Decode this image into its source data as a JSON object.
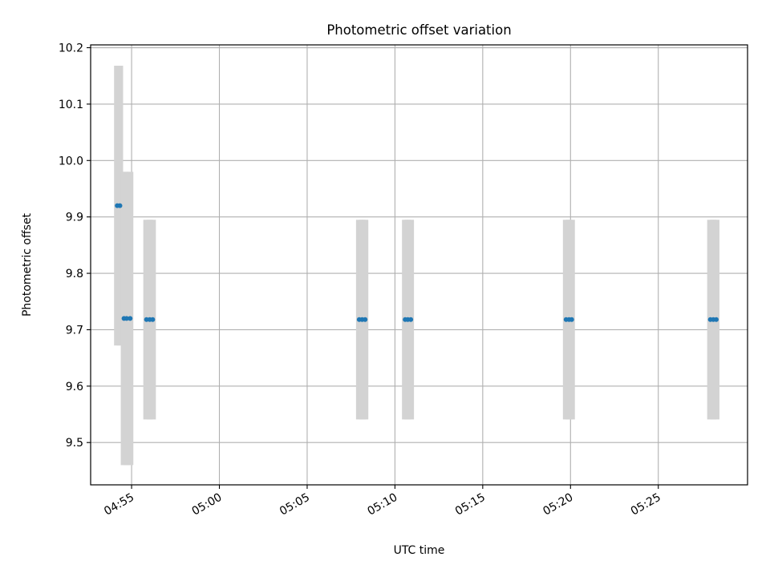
{
  "chart_data": {
    "type": "scatter",
    "title": "Photometric offset variation",
    "xlabel": "UTC time",
    "ylabel": "Photometric offset",
    "xlim": [
      "04:52:40",
      "05:30:05"
    ],
    "ylim": [
      9.425,
      10.205
    ],
    "x_ticks": [
      "04:55",
      "05:00",
      "05:05",
      "05:10",
      "05:15",
      "05:20",
      "05:25"
    ],
    "y_ticks": [
      "9.5",
      "9.6",
      "9.7",
      "9.8",
      "9.9",
      "10.0",
      "10.1",
      "10.2"
    ],
    "grid": true,
    "series": [
      {
        "marker_color": "#1f77b4",
        "errorbar_color": "#d3d3d3",
        "points": [
          {
            "time": "04:54:11",
            "y": 9.92,
            "yerr": 0.248
          },
          {
            "time": "04:54:20",
            "y": 9.92,
            "yerr": 0.248
          },
          {
            "time": "04:54:34",
            "y": 9.72,
            "yerr": 0.26
          },
          {
            "time": "04:54:43",
            "y": 9.72,
            "yerr": 0.26
          },
          {
            "time": "04:54:55",
            "y": 9.72,
            "yerr": 0.26
          },
          {
            "time": "04:55:51",
            "y": 9.718,
            "yerr": 0.177
          },
          {
            "time": "04:56:02",
            "y": 9.718,
            "yerr": 0.177
          },
          {
            "time": "04:56:12",
            "y": 9.718,
            "yerr": 0.177
          },
          {
            "time": "05:07:58",
            "y": 9.718,
            "yerr": 0.177
          },
          {
            "time": "05:08:08",
            "y": 9.718,
            "yerr": 0.177
          },
          {
            "time": "05:08:18",
            "y": 9.718,
            "yerr": 0.177
          },
          {
            "time": "05:10:35",
            "y": 9.718,
            "yerr": 0.177
          },
          {
            "time": "05:10:44",
            "y": 9.718,
            "yerr": 0.177
          },
          {
            "time": "05:10:54",
            "y": 9.718,
            "yerr": 0.177
          },
          {
            "time": "05:19:45",
            "y": 9.718,
            "yerr": 0.177
          },
          {
            "time": "05:19:55",
            "y": 9.718,
            "yerr": 0.177
          },
          {
            "time": "05:20:04",
            "y": 9.718,
            "yerr": 0.177
          },
          {
            "time": "05:27:58",
            "y": 9.718,
            "yerr": 0.177
          },
          {
            "time": "05:28:08",
            "y": 9.718,
            "yerr": 0.177
          },
          {
            "time": "05:28:18",
            "y": 9.718,
            "yerr": 0.177
          }
        ]
      }
    ]
  }
}
